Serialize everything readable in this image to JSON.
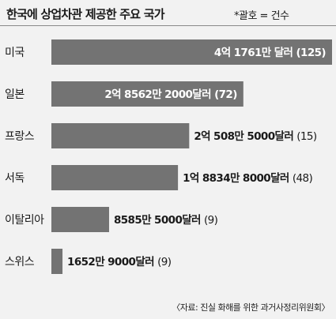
{
  "header": {
    "title": "한국에 상업차관 제공한 주요 국가",
    "note": "*괄호 = 건수"
  },
  "source": "〈자료: 진실 화해를 위한 과거사정리위원회〉",
  "chart_data": {
    "type": "bar",
    "orientation": "horizontal",
    "title": "한국에 상업차관 제공한 주요 국가",
    "categories": [
      "미국",
      "일본",
      "프랑스",
      "서독",
      "이탈리아",
      "스위스"
    ],
    "values": [
      417610000,
      285622000,
      205085000,
      188348000,
      85855000,
      16529000
    ],
    "value_labels": [
      "4억 1761만 달러",
      "2억 8562만 2000달러",
      "2억 508만 5000달러",
      "1억 8834만 8000달러",
      "8585만 5000달러",
      "1652만 9000달러"
    ],
    "counts": [
      "(125)",
      "(72)",
      "(15)",
      "(48)",
      "(9)",
      "(9)"
    ],
    "bar_color": "#737373",
    "label_color_inside": "#ffffff",
    "label_color_outside": "#1a1a1a"
  }
}
